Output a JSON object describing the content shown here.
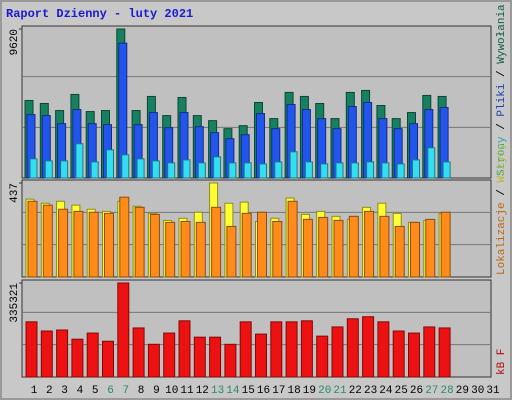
{
  "title": "Raport Dzienny -  luty 2021",
  "legend_separator": " / ",
  "chart_data": [
    {
      "type": "bar",
      "ylim": [
        0,
        9620
      ],
      "yticks": [
        9620
      ],
      "grid": true,
      "series": [
        {
          "name": "Strony",
          "color": "#33ddf2",
          "values": [
            1235,
            1105,
            1105,
            2210,
            1040,
            1820,
            1495,
            1235,
            1105,
            975,
            1170,
            975,
            1365,
            975,
            975,
            910,
            1040,
            1690,
            1040,
            910,
            975,
            975,
            1040,
            975,
            910,
            1170,
            1950,
            1040,
            null,
            null,
            null
          ]
        },
        {
          "name": "Pliki",
          "color": "#2255ee",
          "values": [
            4095,
            4030,
            3510,
            4420,
            3510,
            3445,
            8710,
            3445,
            4225,
            3250,
            4225,
            3315,
            2925,
            2535,
            2795,
            4160,
            3185,
            4745,
            4420,
            3835,
            3185,
            4615,
            4875,
            3835,
            3185,
            3510,
            4420,
            4550,
            null,
            null,
            null
          ]
        },
        {
          "name": "Wywołania",
          "color": "#168060",
          "values": [
            5005,
            4810,
            4355,
            5395,
            4290,
            4355,
            9620,
            4355,
            5265,
            4030,
            5200,
            4030,
            3705,
            3185,
            3380,
            4875,
            3835,
            5525,
            5265,
            4810,
            3835,
            5525,
            5655,
            4680,
            3835,
            4225,
            5330,
            5265,
            null,
            null,
            null
          ]
        }
      ]
    },
    {
      "type": "bar",
      "ylim": [
        0,
        437
      ],
      "yticks": [
        437
      ],
      "grid": true,
      "series": [
        {
          "name": "Lokalizacje",
          "color": "#ff8c1a",
          "values": [
            352,
            334,
            315,
            305,
            301,
            296,
            371,
            324,
            291,
            254,
            258,
            254,
            324,
            235,
            296,
            301,
            258,
            352,
            268,
            277,
            263,
            282,
            305,
            282,
            235,
            254,
            268,
            301,
            null,
            null,
            null
          ]
        },
        {
          "name": "Wizyty",
          "color": "#ffff33",
          "values": [
            362,
            343,
            352,
            334,
            315,
            305,
            352,
            329,
            296,
            263,
            273,
            301,
            437,
            343,
            348,
            258,
            273,
            367,
            291,
            305,
            282,
            268,
            324,
            343,
            296,
            254,
            263,
            296,
            null,
            null,
            null
          ]
        }
      ]
    },
    {
      "type": "bar",
      "ylim": [
        0,
        335321
      ],
      "yticks": [
        335321
      ],
      "grid": true,
      "categories": [
        "1",
        "2",
        "3",
        "4",
        "5",
        "6",
        "7",
        "8",
        "9",
        "10",
        "11",
        "12",
        "13",
        "14",
        "15",
        "16",
        "17",
        "18",
        "19",
        "20",
        "21",
        "22",
        "23",
        "24",
        "25",
        "26",
        "27",
        "28",
        "29",
        "30",
        "31"
      ],
      "weekend": [
        6,
        7,
        13,
        14,
        20,
        21,
        27,
        28
      ],
      "weekend_color": "#2a8a6a",
      "series": [
        {
          "name": "kB F",
          "color": "#ee1111",
          "values": [
            196820,
            164020,
            167660,
            134860,
            156730,
            127570,
            335321,
            174950,
            116630,
            156730,
            200470,
            142150,
            142150,
            116630,
            196820,
            153090,
            196820,
            196820,
            200470,
            145790,
            178600,
            207760,
            215050,
            196820,
            164020,
            156730,
            178600,
            174950,
            null,
            null,
            null
          ]
        }
      ]
    }
  ]
}
